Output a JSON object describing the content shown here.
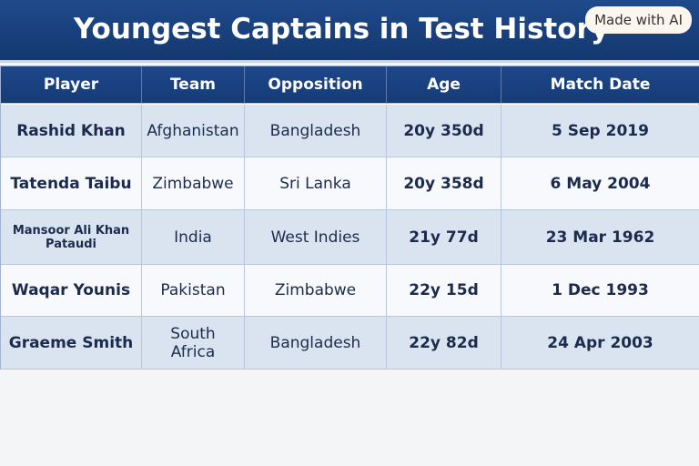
{
  "header": {
    "title": "Youngest Captains in Test History",
    "badge": "Made with AI"
  },
  "table": {
    "columns": [
      "Player",
      "Team",
      "Opposition",
      "Age",
      "Match Date"
    ],
    "rows": [
      [
        "Rashid Khan",
        "Afghanistan",
        "Bangladesh",
        "20y 350d",
        "5 Sep 2019"
      ],
      [
        "Tatenda Taibu",
        "Zimbabwe",
        "Sri Lanka",
        "20y 358d",
        "6 May 2004"
      ],
      [
        "Mansoor Ali Khan Pataudi",
        "India",
        "West Indies",
        "21y 77d",
        "23 Mar 1962"
      ],
      [
        "Waqar Younis",
        "Pakistan",
        "Zimbabwe",
        "22y 15d",
        "1 Dec 1993"
      ],
      [
        "Graeme Smith",
        "South Africa",
        "Bangladesh",
        "22y 82d",
        "24 Apr 2003"
      ]
    ]
  }
}
